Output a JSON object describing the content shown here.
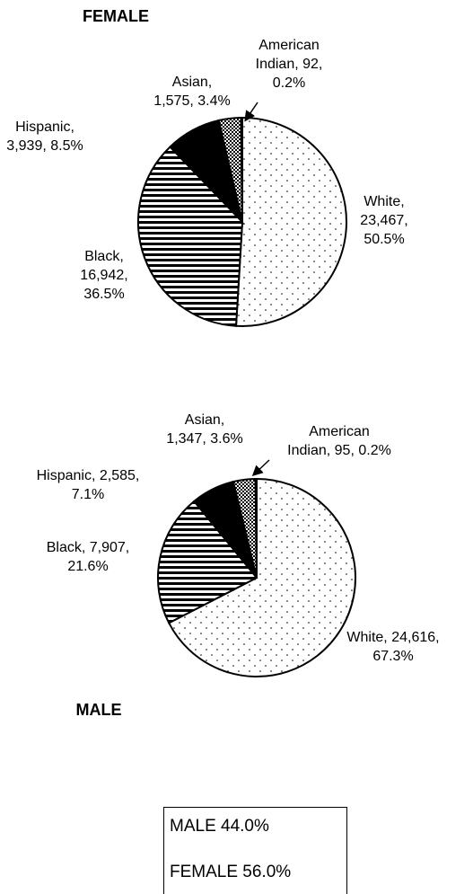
{
  "chart_data": [
    {
      "type": "pie",
      "title": "FEMALE",
      "slices": [
        {
          "name": "White",
          "count": "23,467",
          "percent": "50.5%",
          "value": 50.5,
          "pattern": "dots"
        },
        {
          "name": "Black",
          "count": "16,942",
          "percent": "36.5%",
          "value": 36.5,
          "pattern": "hlines"
        },
        {
          "name": "Hispanic",
          "count": "3,939",
          "percent": "8.5%",
          "value": 8.5,
          "pattern": "solid"
        },
        {
          "name": "Asian",
          "count": "1,575",
          "percent": "3.4%",
          "value": 3.4,
          "pattern": "checker"
        },
        {
          "name": "American Indian",
          "count": "92",
          "percent": "0.2%",
          "value": 0.2,
          "pattern": "white"
        }
      ],
      "labels": [
        [
          "White,",
          "23,467,",
          "50.5%"
        ],
        [
          "Black,",
          "16,942,",
          "36.5%"
        ],
        [
          "Hispanic,",
          "3,939,  8.5%"
        ],
        [
          "Asian,",
          "1,575, 3.4%"
        ],
        [
          "American",
          "Indian, 92,",
          "0.2%"
        ]
      ]
    },
    {
      "type": "pie",
      "title": "MALE",
      "slices": [
        {
          "name": "White",
          "count": "24,616",
          "percent": "67.3%",
          "value": 67.3,
          "pattern": "dots"
        },
        {
          "name": "Black",
          "count": "7,907",
          "percent": "21.6%",
          "value": 21.6,
          "pattern": "hlines"
        },
        {
          "name": "Hispanic",
          "count": "2,585",
          "percent": "7.1%",
          "value": 7.1,
          "pattern": "solid"
        },
        {
          "name": "Asian",
          "count": "1,347",
          "percent": "3.6%",
          "value": 3.6,
          "pattern": "checker"
        },
        {
          "name": "American Indian",
          "count": "95",
          "percent": "0.2%",
          "value": 0.2,
          "pattern": "white"
        }
      ],
      "labels": [
        [
          "White, 24,616,",
          "67.3%"
        ],
        [
          "Black, 7,907,",
          "21.6%"
        ],
        [
          "Hispanic, 2,585,",
          "7.1%"
        ],
        [
          "Asian,",
          "1,347, 3.6%"
        ],
        [
          "American",
          "Indian, 95, 0.2%"
        ]
      ]
    }
  ],
  "legend": {
    "male": "MALE 44.0%",
    "female": "FEMALE 56.0%"
  }
}
